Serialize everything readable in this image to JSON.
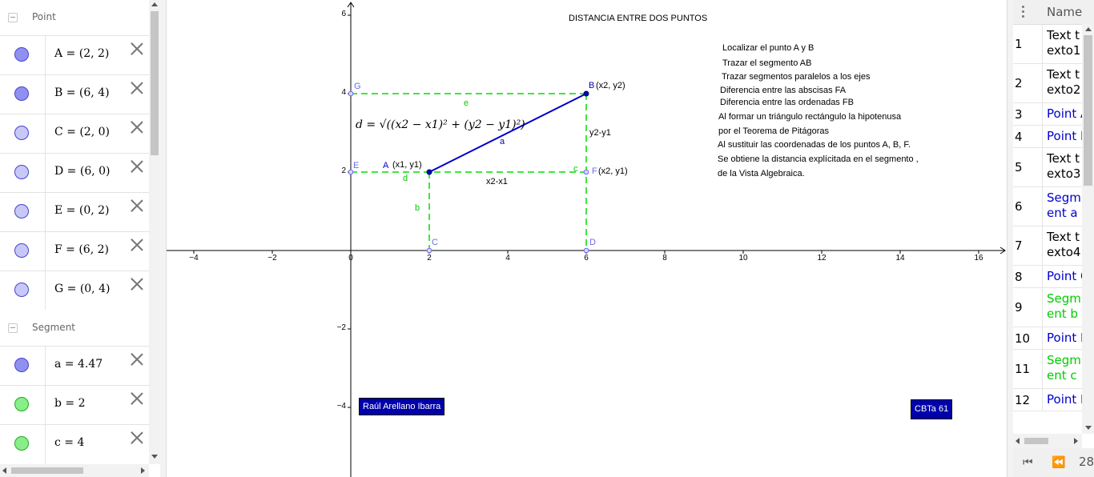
{
  "algebra": {
    "groups": [
      {
        "title": "Point"
      },
      {
        "title": "Segment"
      }
    ],
    "points": [
      {
        "def": "A = (2, 2)",
        "color": "#9090f0"
      },
      {
        "def": "B = (6, 4)",
        "color": "#9090f0"
      },
      {
        "def": "C = (2, 0)",
        "color": "#c8c8f8"
      },
      {
        "def": "D = (6, 0)",
        "color": "#c8c8f8"
      },
      {
        "def": "E = (0, 2)",
        "color": "#c8c8f8"
      },
      {
        "def": "F = (6, 2)",
        "color": "#c8c8f8"
      },
      {
        "def": "G = (0, 4)",
        "color": "#c8c8f8"
      }
    ],
    "segments": [
      {
        "def": "a = 4.47",
        "color": "#9090f0"
      },
      {
        "def": "b = 2",
        "color": "#88ee88"
      },
      {
        "def": "c = 4",
        "color": "#88ee88"
      }
    ]
  },
  "graphics": {
    "title": "DISTANCIA ENTRE DOS PUNTOS",
    "steps": [
      "Localizar el punto A y B",
      "Trazar el segmento AB",
      "Trazar segmentos paralelos a los ejes",
      "Diferencia entre las abscisas FA",
      "Diferencia entre las ordenadas FB",
      "Al formar un triángulo rectángulo la hipotenusa",
      "por el Teorema de Pitágoras",
      "Al sustituir las coordenadas de los puntos A, B, F.",
      "Se obtiene la distancia explícitada en el segmento ,",
      "de la Vista Algebraica."
    ],
    "author_box": "Raúl Arellano Ibarra",
    "school_box": "CBTa 61",
    "formula": "d = √((x2 − x1)² + (y2 − y1)²)",
    "x_ticks": [
      "−4",
      "−2",
      "0",
      "2",
      "4",
      "6",
      "8",
      "10",
      "12",
      "14",
      "16"
    ],
    "y_ticks": [
      "6",
      "4",
      "2",
      "−2",
      "−4"
    ],
    "point_labels": {
      "A": "A",
      "B": "B",
      "C": "C",
      "D": "D",
      "E": "E",
      "F": "F",
      "G": "G"
    },
    "coord_labels": {
      "A": "(x1, y1)",
      "B": "(x2, y2)",
      "F": "(x2, y1)"
    },
    "segment_labels": {
      "a": "a",
      "b": "b",
      "c": "c",
      "d": "d",
      "e": "e"
    },
    "diff_labels": {
      "dx": "x2-x1",
      "dy": "y2-y1"
    },
    "colors": {
      "primary": "#0000cc",
      "dashed": "#00dd00",
      "point_light": "#6a6aee",
      "box": "#0000aa"
    }
  },
  "protocol": {
    "header": "Name",
    "rows": [
      {
        "num": "1",
        "name": "Text texto1",
        "color": "#000000",
        "tall": true
      },
      {
        "num": "2",
        "name": "Text texto2",
        "color": "#000000",
        "tall": true
      },
      {
        "num": "3",
        "name": "Point A",
        "color": "#0000cc",
        "tall": false
      },
      {
        "num": "4",
        "name": "Point B",
        "color": "#0000cc",
        "tall": false
      },
      {
        "num": "5",
        "name": "Text texto3",
        "color": "#000000",
        "tall": true
      },
      {
        "num": "6",
        "name": "Segment a",
        "color": "#0000cc",
        "tall": true
      },
      {
        "num": "7",
        "name": "Text texto4",
        "color": "#000000",
        "tall": true
      },
      {
        "num": "8",
        "name": "Point C",
        "color": "#0000cc",
        "tall": false
      },
      {
        "num": "9",
        "name": "Segment b",
        "color": "#00cc00",
        "tall": true
      },
      {
        "num": "10",
        "name": "Point D",
        "color": "#0000cc",
        "tall": false
      },
      {
        "num": "11",
        "name": "Segment c",
        "color": "#00cc00",
        "tall": true
      },
      {
        "num": "12",
        "name": "Point E",
        "color": "#0000cc",
        "tall": false
      }
    ],
    "step": "28"
  }
}
